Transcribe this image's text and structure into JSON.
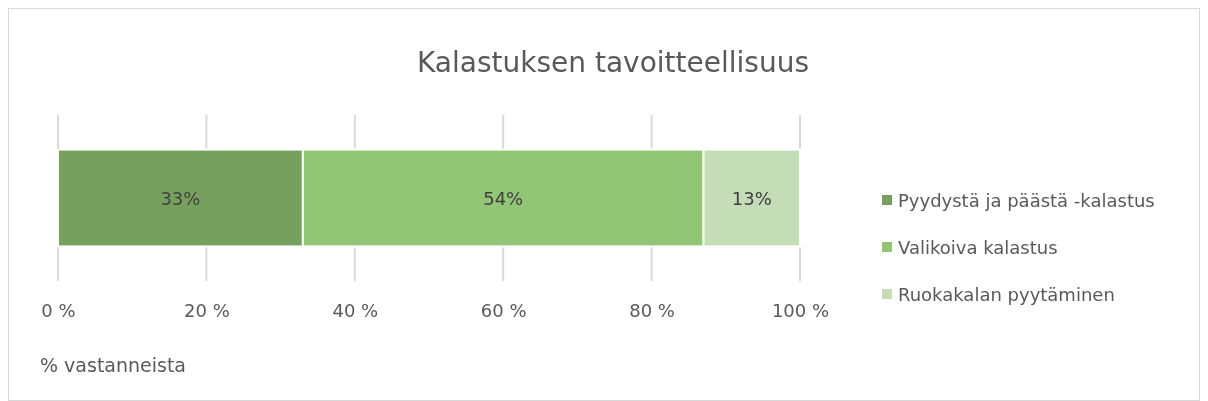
{
  "chart_data": {
    "type": "bar",
    "title": "Kalastuksen tavoitteellisuus",
    "xlabel": "% vastanneista",
    "orientation": "horizontal",
    "stacked": true,
    "categories": [
      null
    ],
    "series": [
      {
        "name": "Pyydystä ja päästä -kalastus",
        "color": "#77a05e",
        "values": [
          33
        ],
        "value_labels": [
          "33%"
        ]
      },
      {
        "name": "Valikoiva kalastus",
        "color": "#92c575",
        "values": [
          54
        ],
        "value_labels": [
          "54%"
        ]
      },
      {
        "name": "Ruokakalan pyytäminen",
        "color": "#c4ddb6",
        "values": [
          13
        ],
        "value_labels": [
          "13%"
        ]
      }
    ],
    "xlim": [
      0,
      100
    ],
    "xticks": [
      {
        "value": 0,
        "label": "0 %"
      },
      {
        "value": 20,
        "label": "20 %"
      },
      {
        "value": 40,
        "label": "40 %"
      },
      {
        "value": 60,
        "label": "60 %"
      },
      {
        "value": 80,
        "label": "80 %"
      },
      {
        "value": 100,
        "label": "100 %"
      }
    ],
    "grid": "x",
    "legend": "right"
  }
}
